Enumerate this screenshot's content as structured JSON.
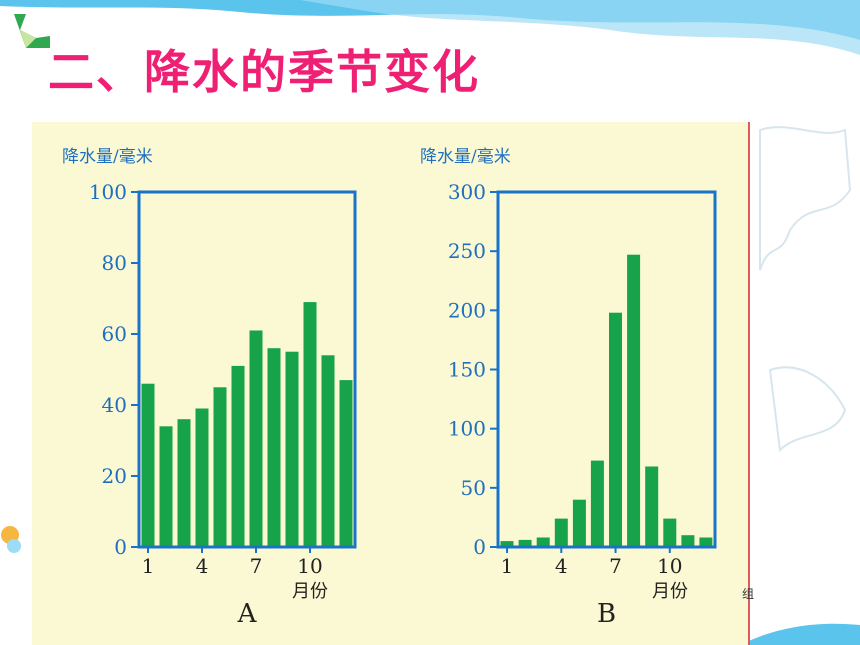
{
  "slide": {
    "title": "二、降水的季节变化",
    "corner_text": "组",
    "colors": {
      "title": "#ef1f74",
      "bar": "#16a34a",
      "axis": "#1a73c9",
      "panel": "#fbf9d4"
    }
  },
  "chart_data": [
    {
      "type": "bar",
      "panel_label": "A",
      "ylabel": "降水量/毫米",
      "xlabel": "月份",
      "ylim": [
        0,
        100
      ],
      "yticks": [
        0,
        20,
        40,
        60,
        80,
        100
      ],
      "categories": [
        1,
        2,
        3,
        4,
        5,
        6,
        7,
        8,
        9,
        10,
        11,
        12
      ],
      "xtick_labels": [
        "1",
        "4",
        "7",
        "10"
      ],
      "values": [
        46,
        34,
        36,
        39,
        45,
        51,
        61,
        56,
        55,
        69,
        54,
        47
      ]
    },
    {
      "type": "bar",
      "panel_label": "B",
      "ylabel": "降水量/毫米",
      "xlabel": "月份",
      "ylim": [
        0,
        300
      ],
      "yticks": [
        0,
        50,
        100,
        150,
        200,
        250,
        300
      ],
      "categories": [
        1,
        2,
        3,
        4,
        5,
        6,
        7,
        8,
        9,
        10,
        11,
        12
      ],
      "xtick_labels": [
        "1",
        "4",
        "7",
        "10"
      ],
      "values": [
        5,
        6,
        8,
        24,
        40,
        73,
        198,
        247,
        68,
        24,
        10,
        8
      ]
    }
  ]
}
